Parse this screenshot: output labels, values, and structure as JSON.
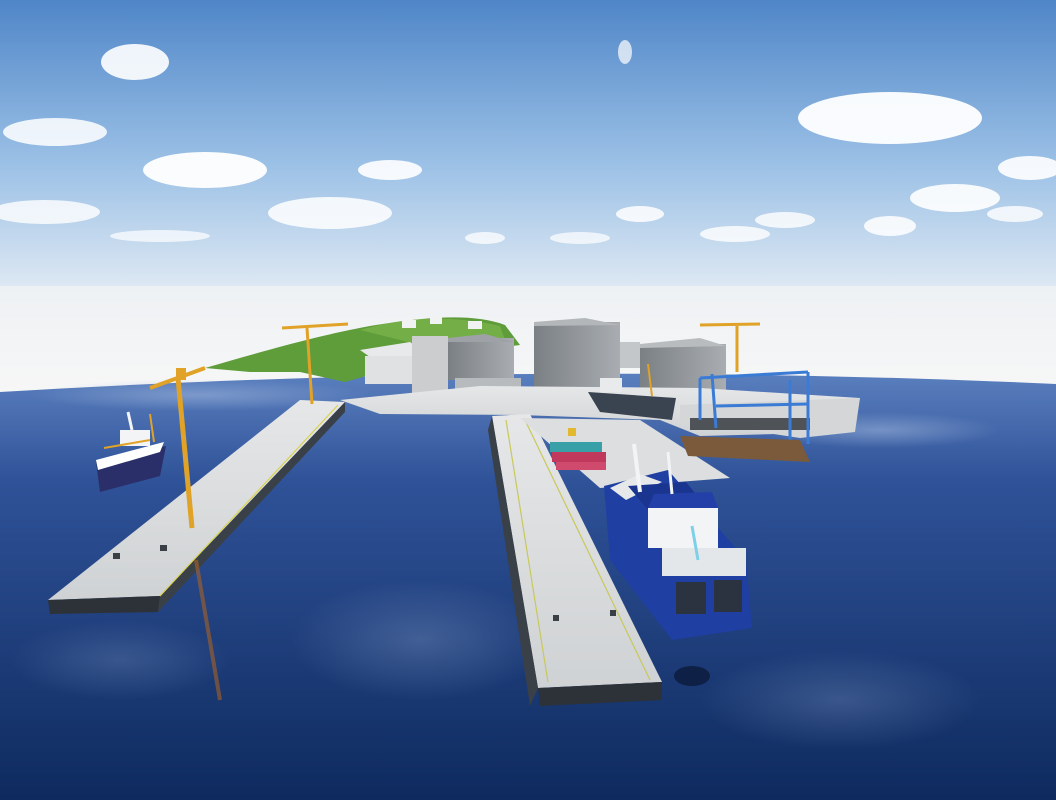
{
  "scene": {
    "colors": {
      "sky_top": "#4f86c8",
      "sky_mid": "#9cc1e6",
      "haze": "#f2f3f5",
      "water_far": "#3f64a8",
      "water_near": "#0e2a5e",
      "quay": "#d9dbdc",
      "quay_shadow": "#2d3238",
      "hill": "#5f9c3a",
      "building": "#8d9196",
      "crane": "#e0a227",
      "vessel_hull": "#1f3fa2",
      "vessel_cabin": "#f2f4f6",
      "gantry": "#3a7bd5",
      "container_red": "#c0395c",
      "container_teal": "#3aa0a8"
    },
    "objects": [
      "sky-with-clouds",
      "calm-sea",
      "green-hill",
      "warehouse-buildings",
      "left-pier",
      "center-pier",
      "tower-crane",
      "gantry-crane",
      "blue-service-vessel",
      "fishing-boat",
      "cargo-containers"
    ]
  }
}
